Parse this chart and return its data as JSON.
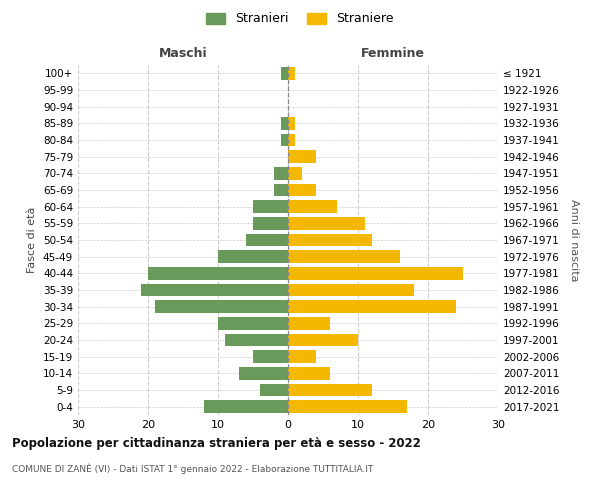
{
  "age_groups": [
    "0-4",
    "5-9",
    "10-14",
    "15-19",
    "20-24",
    "25-29",
    "30-34",
    "35-39",
    "40-44",
    "45-49",
    "50-54",
    "55-59",
    "60-64",
    "65-69",
    "70-74",
    "75-79",
    "80-84",
    "85-89",
    "90-94",
    "95-99",
    "100+"
  ],
  "birth_years": [
    "2017-2021",
    "2012-2016",
    "2007-2011",
    "2002-2006",
    "1997-2001",
    "1992-1996",
    "1987-1991",
    "1982-1986",
    "1977-1981",
    "1972-1976",
    "1967-1971",
    "1962-1966",
    "1957-1961",
    "1952-1956",
    "1947-1951",
    "1942-1946",
    "1937-1941",
    "1932-1936",
    "1927-1931",
    "1922-1926",
    "≤ 1921"
  ],
  "maschi": [
    12,
    4,
    7,
    5,
    9,
    10,
    19,
    21,
    20,
    10,
    6,
    5,
    5,
    2,
    2,
    0,
    1,
    1,
    0,
    0,
    1
  ],
  "femmine": [
    17,
    12,
    6,
    4,
    10,
    6,
    24,
    18,
    25,
    16,
    12,
    11,
    7,
    4,
    2,
    4,
    1,
    1,
    0,
    0,
    1
  ],
  "maschi_color": "#6a9a5b",
  "femmine_color": "#f5b800",
  "maschi_label": "Stranieri",
  "femmine_label": "Straniere",
  "maschi_header": "Maschi",
  "femmine_header": "Femmine",
  "xlim": 30,
  "title": "Popolazione per cittadinanza straniera per età e sesso - 2022",
  "subtitle": "COMUNE DI ZANÈ (VI) - Dati ISTAT 1° gennaio 2022 - Elaborazione TUTTITALIA.IT",
  "ylabel_left": "Fasce di età",
  "ylabel_right": "Anni di nascita",
  "bg_color": "#ffffff",
  "grid_color": "#cccccc"
}
